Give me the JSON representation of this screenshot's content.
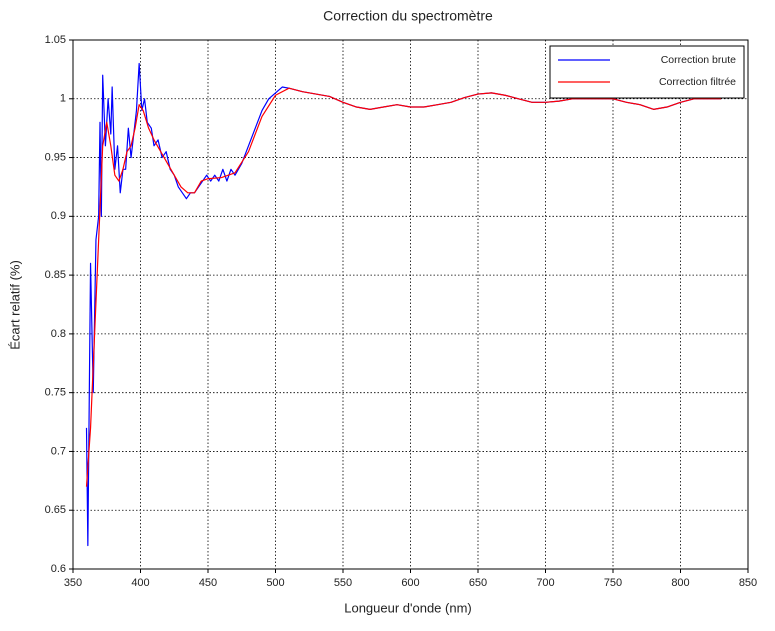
{
  "chart_data": {
    "type": "line",
    "title": "Correction du spectromètre",
    "x_label": "Longueur d'onde (nm)",
    "y_label": "Écart relatif (%)",
    "xlim": [
      350,
      850
    ],
    "xticks": [
      350,
      400,
      450,
      500,
      550,
      600,
      650,
      700,
      750,
      800,
      850
    ],
    "ylim": [
      0.6,
      1.05
    ],
    "yticks": [
      0.6,
      0.65,
      0.7,
      0.75,
      0.8,
      0.85,
      0.9,
      0.95,
      1,
      1.05
    ],
    "grid": true,
    "legend": "upper right",
    "series": [
      {
        "name": "Correction brute",
        "color": "#0000ff",
        "x": [
          360,
          361,
          363,
          365,
          367,
          369,
          370,
          371,
          372,
          374,
          376,
          378,
          379,
          381,
          383,
          385,
          387,
          389,
          391,
          393,
          395,
          397,
          399,
          401,
          403,
          405,
          408,
          410,
          413,
          416,
          419,
          422,
          425,
          428,
          431,
          434,
          437,
          440,
          443,
          446,
          449,
          452,
          455,
          458,
          461,
          464,
          467,
          470,
          475,
          480,
          485,
          490,
          495,
          500,
          505,
          510,
          520,
          530,
          540,
          550,
          560,
          570,
          580,
          590,
          600,
          610,
          620,
          630,
          640,
          650,
          660,
          670,
          680,
          690,
          700,
          710,
          720,
          730,
          740,
          750,
          760,
          770,
          780,
          790,
          800,
          810,
          820,
          830
        ],
        "values": [
          0.72,
          0.62,
          0.86,
          0.75,
          0.88,
          0.9,
          0.98,
          0.9,
          1.02,
          0.96,
          1.0,
          0.97,
          1.01,
          0.94,
          0.96,
          0.92,
          0.94,
          0.94,
          0.975,
          0.95,
          0.97,
          0.99,
          1.03,
          0.99,
          1.0,
          0.98,
          0.975,
          0.96,
          0.965,
          0.95,
          0.955,
          0.94,
          0.935,
          0.925,
          0.92,
          0.915,
          0.92,
          0.92,
          0.925,
          0.93,
          0.935,
          0.93,
          0.935,
          0.93,
          0.94,
          0.93,
          0.94,
          0.935,
          0.945,
          0.96,
          0.975,
          0.99,
          1.0,
          1.005,
          1.01,
          1.009,
          1.006,
          1.004,
          1.002,
          0.997,
          0.993,
          0.991,
          0.993,
          0.995,
          0.993,
          0.993,
          0.995,
          0.997,
          1.001,
          1.004,
          1.005,
          1.003,
          1.0,
          0.997,
          0.997,
          0.998,
          1.0,
          1.0,
          1.0,
          1.0,
          0.997,
          0.995,
          0.991,
          0.993,
          0.997,
          1.0,
          1.0,
          1.0
        ]
      },
      {
        "name": "Correction filtrée",
        "color": "#ff0000",
        "x": [
          360,
          363,
          366,
          369,
          372,
          375,
          378,
          381,
          384,
          387,
          390,
          393,
          396,
          399,
          402,
          406,
          410,
          415,
          420,
          425,
          430,
          435,
          440,
          445,
          450,
          460,
          470,
          480,
          490,
          500,
          510,
          520,
          530,
          540,
          550,
          560,
          570,
          580,
          590,
          600,
          610,
          620,
          630,
          640,
          650,
          660,
          670,
          680,
          690,
          700,
          710,
          720,
          730,
          740,
          750,
          760,
          770,
          780,
          790,
          800,
          810,
          820,
          830
        ],
        "values": [
          0.67,
          0.72,
          0.8,
          0.88,
          0.96,
          0.98,
          0.96,
          0.935,
          0.93,
          0.94,
          0.955,
          0.96,
          0.975,
          0.995,
          0.99,
          0.975,
          0.965,
          0.955,
          0.945,
          0.935,
          0.925,
          0.92,
          0.92,
          0.93,
          0.932,
          0.933,
          0.937,
          0.955,
          0.985,
          1.003,
          1.009,
          1.006,
          1.004,
          1.002,
          0.997,
          0.993,
          0.991,
          0.993,
          0.995,
          0.993,
          0.993,
          0.995,
          0.997,
          1.001,
          1.004,
          1.005,
          1.003,
          1.0,
          0.997,
          0.997,
          0.998,
          1.0,
          1.0,
          1.0,
          1.0,
          0.997,
          0.995,
          0.991,
          0.993,
          0.997,
          1.0,
          1.0,
          1.0
        ]
      }
    ]
  }
}
